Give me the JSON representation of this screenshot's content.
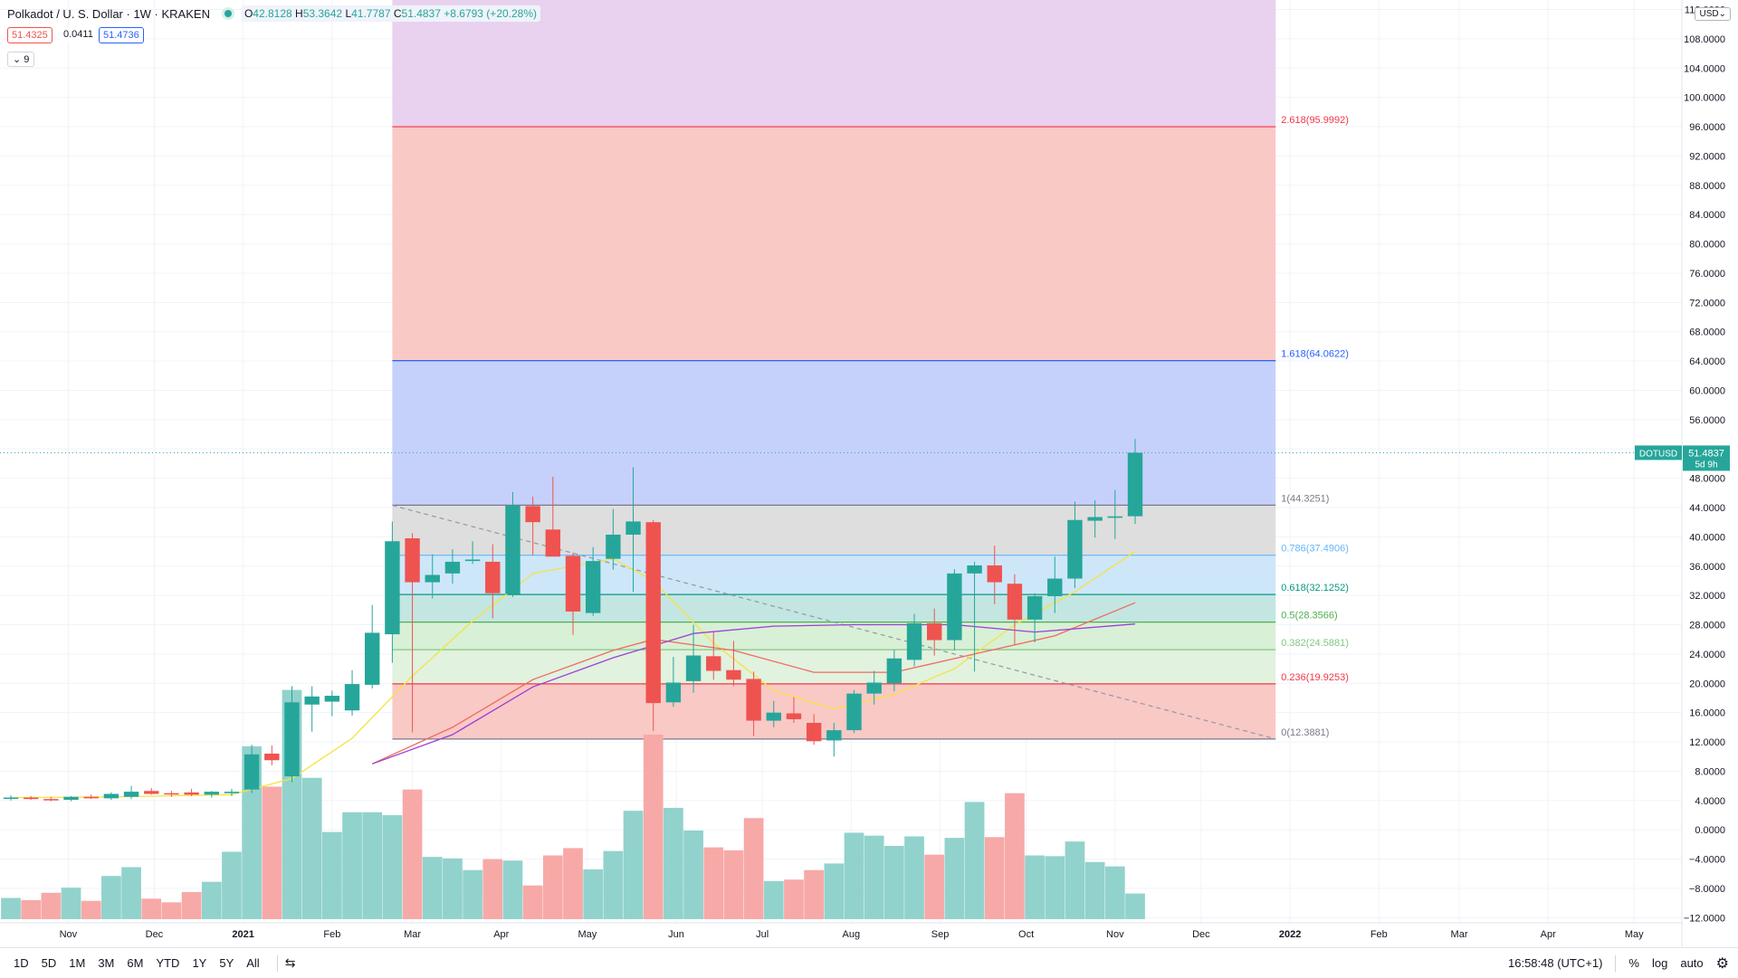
{
  "header": {
    "title": "Polkadot / U. S. Dollar · 1W · KRAKEN",
    "ohlc": {
      "o_label": "O",
      "o": "42.8128",
      "h_label": "H",
      "h": "53.3642",
      "l_label": "L",
      "l": "41.7787",
      "c_label": "C",
      "c": "51.4837",
      "chg": "+8.6793 (+20.28%)"
    },
    "bid": "51.4325",
    "spread": "0.0411",
    "ask": "51.4736",
    "collapse_label": "9",
    "currency": "USD"
  },
  "bottom": {
    "ranges": [
      "1D",
      "5D",
      "1M",
      "3M",
      "6M",
      "YTD",
      "1Y",
      "5Y",
      "All"
    ],
    "time": "16:58:48 (UTC+1)",
    "pct": "%",
    "log": "log",
    "auto": "auto"
  },
  "colors": {
    "up": "#26a69a",
    "down": "#ef5350",
    "ma_fast": "#f7e23f",
    "ma_mid": "#f06a5d",
    "ma_slow": "#9c3fd6"
  },
  "chart_data": {
    "type": "candlestick",
    "symbol_label": "DOTUSD",
    "last_price": "51.4837",
    "countdown": "5d 9h",
    "x_ticks": [
      {
        "label": "Nov",
        "date": "2020-11-01"
      },
      {
        "label": "Dec",
        "date": "2020-12-01"
      },
      {
        "label": "2021",
        "date": "2021-01-01"
      },
      {
        "label": "Feb",
        "date": "2021-02-01"
      },
      {
        "label": "Mar",
        "date": "2021-03-01"
      },
      {
        "label": "Apr",
        "date": "2021-04-01"
      },
      {
        "label": "May",
        "date": "2021-05-01"
      },
      {
        "label": "Jun",
        "date": "2021-06-01"
      },
      {
        "label": "Jul",
        "date": "2021-07-01"
      },
      {
        "label": "Aug",
        "date": "2021-08-01"
      },
      {
        "label": "Sep",
        "date": "2021-09-01"
      },
      {
        "label": "Oct",
        "date": "2021-10-01"
      },
      {
        "label": "Nov",
        "date": "2021-11-01"
      },
      {
        "label": "Dec",
        "date": "2021-12-01"
      },
      {
        "label": "2022",
        "date": "2022-01-01"
      },
      {
        "label": "Feb",
        "date": "2022-02-01"
      },
      {
        "label": "Mar",
        "date": "2022-03-01"
      },
      {
        "label": "Apr",
        "date": "2022-04-01"
      },
      {
        "label": "May",
        "date": "2022-05-01"
      }
    ],
    "y_ticks": [
      "112.0000",
      "108.0000",
      "104.0000",
      "100.0000",
      "96.0000",
      "92.0000",
      "88.0000",
      "84.0000",
      "80.0000",
      "76.0000",
      "72.0000",
      "68.0000",
      "64.0000",
      "60.0000",
      "56.0000",
      "52.0000",
      "48.0000",
      "44.0000",
      "40.0000",
      "36.0000",
      "32.0000",
      "28.0000",
      "24.0000",
      "20.0000",
      "16.0000",
      "12.0000",
      "8.0000",
      "4.0000",
      "0.0000",
      "−4.0000",
      "−8.0000",
      "−12.0000"
    ],
    "y_range": [
      -12.7,
      113.3
    ],
    "candles": [
      {
        "date": "2020-10-12",
        "o": 4.3,
        "h": 4.7,
        "l": 4.0,
        "c": 4.4
      },
      {
        "date": "2020-10-19",
        "o": 4.4,
        "h": 4.6,
        "l": 4.1,
        "c": 4.2
      },
      {
        "date": "2020-10-26",
        "o": 4.2,
        "h": 4.5,
        "l": 3.9,
        "c": 4.1
      },
      {
        "date": "2020-11-02",
        "o": 4.1,
        "h": 4.6,
        "l": 3.9,
        "c": 4.5
      },
      {
        "date": "2020-11-09",
        "o": 4.5,
        "h": 4.8,
        "l": 4.2,
        "c": 4.3
      },
      {
        "date": "2020-11-16",
        "o": 4.3,
        "h": 5.1,
        "l": 4.1,
        "c": 4.9
      },
      {
        "date": "2020-11-23",
        "o": 4.5,
        "h": 6.0,
        "l": 4.2,
        "c": 5.2
      },
      {
        "date": "2020-11-30",
        "o": 5.3,
        "h": 5.7,
        "l": 4.8,
        "c": 4.9
      },
      {
        "date": "2020-12-07",
        "o": 5.0,
        "h": 5.3,
        "l": 4.5,
        "c": 4.9
      },
      {
        "date": "2020-12-14",
        "o": 5.1,
        "h": 5.6,
        "l": 4.6,
        "c": 4.8
      },
      {
        "date": "2020-12-21",
        "o": 4.8,
        "h": 5.3,
        "l": 4.4,
        "c": 5.2
      },
      {
        "date": "2020-12-28",
        "o": 5.0,
        "h": 5.6,
        "l": 4.6,
        "c": 5.2
      },
      {
        "date": "2021-01-04",
        "o": 5.5,
        "h": 11.6,
        "l": 5.0,
        "c": 10.3
      },
      {
        "date": "2021-01-11",
        "o": 10.4,
        "h": 11.5,
        "l": 8.8,
        "c": 9.5
      },
      {
        "date": "2021-01-18",
        "o": 7.3,
        "h": 19.6,
        "l": 6.5,
        "c": 17.4
      },
      {
        "date": "2021-01-25",
        "o": 17.1,
        "h": 19.6,
        "l": 13.4,
        "c": 18.2
      },
      {
        "date": "2021-02-01",
        "o": 17.5,
        "h": 19.0,
        "l": 15.5,
        "c": 18.3
      },
      {
        "date": "2021-02-08",
        "o": 16.3,
        "h": 21.8,
        "l": 15.6,
        "c": 19.9
      },
      {
        "date": "2021-02-15",
        "o": 19.8,
        "h": 30.7,
        "l": 19.3,
        "c": 26.9
      },
      {
        "date": "2021-02-22",
        "o": 26.7,
        "h": 42.1,
        "l": 22.8,
        "c": 39.4
      },
      {
        "date": "2021-03-01",
        "o": 39.8,
        "h": 40.5,
        "l": 13.3,
        "c": 33.8
      },
      {
        "date": "2021-03-08",
        "o": 33.8,
        "h": 37.6,
        "l": 31.6,
        "c": 34.8
      },
      {
        "date": "2021-03-15",
        "o": 35.0,
        "h": 38.3,
        "l": 33.6,
        "c": 36.6
      },
      {
        "date": "2021-03-22",
        "o": 36.7,
        "h": 39.4,
        "l": 36.3,
        "c": 36.9
      },
      {
        "date": "2021-03-29",
        "o": 36.6,
        "h": 39.0,
        "l": 28.9,
        "c": 32.3
      },
      {
        "date": "2021-04-05",
        "o": 32.2,
        "h": 46.1,
        "l": 31.8,
        "c": 44.3
      },
      {
        "date": "2021-04-12",
        "o": 44.2,
        "h": 45.5,
        "l": 37.5,
        "c": 42.0
      },
      {
        "date": "2021-04-19",
        "o": 41.0,
        "h": 48.2,
        "l": 37.8,
        "c": 37.3
      },
      {
        "date": "2021-04-26",
        "o": 37.4,
        "h": 37.8,
        "l": 26.6,
        "c": 29.8
      },
      {
        "date": "2021-05-03",
        "o": 29.6,
        "h": 38.6,
        "l": 29.2,
        "c": 36.7
      },
      {
        "date": "2021-05-10",
        "o": 37.0,
        "h": 43.8,
        "l": 35.5,
        "c": 40.3
      },
      {
        "date": "2021-05-17",
        "o": 40.3,
        "h": 49.5,
        "l": 32.5,
        "c": 42.1
      },
      {
        "date": "2021-05-24",
        "o": 42.0,
        "h": 42.3,
        "l": 13.5,
        "c": 17.3
      },
      {
        "date": "2021-05-31",
        "o": 17.4,
        "h": 23.6,
        "l": 16.8,
        "c": 20.1
      },
      {
        "date": "2021-06-07",
        "o": 20.3,
        "h": 28.0,
        "l": 18.7,
        "c": 23.8
      },
      {
        "date": "2021-06-14",
        "o": 23.7,
        "h": 27.0,
        "l": 20.5,
        "c": 21.7
      },
      {
        "date": "2021-06-21",
        "o": 21.8,
        "h": 25.8,
        "l": 19.6,
        "c": 20.5
      },
      {
        "date": "2021-06-28",
        "o": 20.6,
        "h": 21.6,
        "l": 12.8,
        "c": 14.9
      },
      {
        "date": "2021-07-05",
        "o": 14.9,
        "h": 17.6,
        "l": 14.0,
        "c": 16.0
      },
      {
        "date": "2021-07-12",
        "o": 15.9,
        "h": 18.1,
        "l": 14.6,
        "c": 15.1
      },
      {
        "date": "2021-07-19",
        "o": 14.6,
        "h": 15.8,
        "l": 11.6,
        "c": 12.1
      },
      {
        "date": "2021-07-26",
        "o": 12.2,
        "h": 14.6,
        "l": 10.0,
        "c": 13.6
      },
      {
        "date": "2021-08-02",
        "o": 13.6,
        "h": 19.1,
        "l": 13.2,
        "c": 18.6
      },
      {
        "date": "2021-08-09",
        "o": 18.6,
        "h": 21.7,
        "l": 17.1,
        "c": 20.1
      },
      {
        "date": "2021-08-16",
        "o": 20.0,
        "h": 24.6,
        "l": 18.9,
        "c": 23.4
      },
      {
        "date": "2021-08-23",
        "o": 23.2,
        "h": 29.5,
        "l": 22.3,
        "c": 28.2
      },
      {
        "date": "2021-08-30",
        "o": 28.2,
        "h": 30.2,
        "l": 23.8,
        "c": 25.9
      },
      {
        "date": "2021-09-06",
        "o": 25.9,
        "h": 35.6,
        "l": 24.5,
        "c": 35.0
      },
      {
        "date": "2021-09-13",
        "o": 35.0,
        "h": 36.6,
        "l": 21.6,
        "c": 36.1
      },
      {
        "date": "2021-09-20",
        "o": 36.1,
        "h": 38.8,
        "l": 30.8,
        "c": 33.8
      },
      {
        "date": "2021-09-27",
        "o": 33.6,
        "h": 34.9,
        "l": 25.3,
        "c": 28.7
      },
      {
        "date": "2021-10-04",
        "o": 28.7,
        "h": 32.3,
        "l": 25.6,
        "c": 31.9
      },
      {
        "date": "2021-10-11",
        "o": 31.9,
        "h": 37.3,
        "l": 29.6,
        "c": 34.3
      },
      {
        "date": "2021-10-18",
        "o": 34.3,
        "h": 44.8,
        "l": 33.0,
        "c": 42.3
      },
      {
        "date": "2021-10-25",
        "o": 42.2,
        "h": 45.0,
        "l": 39.9,
        "c": 42.7
      },
      {
        "date": "2021-11-01",
        "o": 42.6,
        "h": 46.4,
        "l": 39.7,
        "c": 42.8
      },
      {
        "date": "2021-11-08",
        "o": 42.8128,
        "h": 53.3642,
        "l": 41.7787,
        "c": 51.4837
      }
    ],
    "volume_level_4": [
      {
        "date": "2020-10-12",
        "v": -9.3
      },
      {
        "date": "2020-10-19",
        "v": -9.6
      },
      {
        "date": "2020-10-26",
        "v": -8.6
      },
      {
        "date": "2020-11-02",
        "v": -7.9
      },
      {
        "date": "2020-11-09",
        "v": -9.7
      },
      {
        "date": "2020-11-16",
        "v": -6.3
      },
      {
        "date": "2020-11-23",
        "v": -5.1
      },
      {
        "date": "2020-11-30",
        "v": -9.4
      },
      {
        "date": "2020-12-07",
        "v": -9.9
      },
      {
        "date": "2020-12-14",
        "v": -8.5
      },
      {
        "date": "2020-12-21",
        "v": -7.1
      },
      {
        "date": "2020-12-28",
        "v": -3.0
      },
      {
        "date": "2021-01-04",
        "v": 11.4
      },
      {
        "date": "2021-01-11",
        "v": 5.9
      },
      {
        "date": "2021-01-18",
        "v": 19.1
      },
      {
        "date": "2021-01-25",
        "v": 7.1
      },
      {
        "date": "2021-02-01",
        "v": -0.3
      },
      {
        "date": "2021-02-08",
        "v": 2.4
      },
      {
        "date": "2021-02-15",
        "v": 2.4
      },
      {
        "date": "2021-02-22",
        "v": 2.0
      },
      {
        "date": "2021-03-01",
        "v": 5.5
      },
      {
        "date": "2021-03-08",
        "v": -3.7
      },
      {
        "date": "2021-03-15",
        "v": -3.9
      },
      {
        "date": "2021-03-22",
        "v": -5.5
      },
      {
        "date": "2021-03-29",
        "v": -4.0
      },
      {
        "date": "2021-04-05",
        "v": -4.2
      },
      {
        "date": "2021-04-12",
        "v": -7.6
      },
      {
        "date": "2021-04-19",
        "v": -3.5
      },
      {
        "date": "2021-04-26",
        "v": -2.5
      },
      {
        "date": "2021-05-03",
        "v": -5.4
      },
      {
        "date": "2021-05-10",
        "v": -2.9
      },
      {
        "date": "2021-05-17",
        "v": 2.6
      },
      {
        "date": "2021-05-24",
        "v": 13.0
      },
      {
        "date": "2021-05-31",
        "v": 3.0
      },
      {
        "date": "2021-06-07",
        "v": -0.1
      },
      {
        "date": "2021-06-14",
        "v": -2.4
      },
      {
        "date": "2021-06-21",
        "v": -2.8
      },
      {
        "date": "2021-06-28",
        "v": 1.6
      },
      {
        "date": "2021-07-05",
        "v": -7.0
      },
      {
        "date": "2021-07-12",
        "v": -6.8
      },
      {
        "date": "2021-07-19",
        "v": -5.5
      },
      {
        "date": "2021-07-26",
        "v": -4.6
      },
      {
        "date": "2021-08-02",
        "v": -0.4
      },
      {
        "date": "2021-08-09",
        "v": -0.8
      },
      {
        "date": "2021-08-16",
        "v": -2.2
      },
      {
        "date": "2021-08-23",
        "v": -0.9
      },
      {
        "date": "2021-08-30",
        "v": -3.4
      },
      {
        "date": "2021-09-06",
        "v": -1.1
      },
      {
        "date": "2021-09-13",
        "v": 3.8
      },
      {
        "date": "2021-09-20",
        "v": -1.0
      },
      {
        "date": "2021-09-27",
        "v": 5.0
      },
      {
        "date": "2021-10-04",
        "v": -3.5
      },
      {
        "date": "2021-10-11",
        "v": -3.6
      },
      {
        "date": "2021-10-18",
        "v": -1.6
      },
      {
        "date": "2021-10-25",
        "v": -4.4
      },
      {
        "date": "2021-11-01",
        "v": -5.0
      },
      {
        "date": "2021-11-08",
        "v": -8.7
      }
    ],
    "ma_fast": [
      {
        "date": "2020-10-12",
        "v": 4.4
      },
      {
        "date": "2020-11-16",
        "v": 4.5
      },
      {
        "date": "2020-12-28",
        "v": 4.8
      },
      {
        "date": "2021-01-18",
        "v": 7.0
      },
      {
        "date": "2021-02-08",
        "v": 12.5
      },
      {
        "date": "2021-03-01",
        "v": 21.0
      },
      {
        "date": "2021-03-22",
        "v": 28.5
      },
      {
        "date": "2021-04-12",
        "v": 35.0
      },
      {
        "date": "2021-05-10",
        "v": 37.0
      },
      {
        "date": "2021-05-24",
        "v": 34.0
      },
      {
        "date": "2021-06-14",
        "v": 25.5
      },
      {
        "date": "2021-07-05",
        "v": 19.0
      },
      {
        "date": "2021-07-26",
        "v": 16.5
      },
      {
        "date": "2021-08-16",
        "v": 18.5
      },
      {
        "date": "2021-09-06",
        "v": 22.0
      },
      {
        "date": "2021-09-27",
        "v": 28.0
      },
      {
        "date": "2021-10-18",
        "v": 32.5
      },
      {
        "date": "2021-11-08",
        "v": 38.0
      }
    ],
    "ma_mid": [
      {
        "date": "2021-02-15",
        "v": 9.0
      },
      {
        "date": "2021-03-15",
        "v": 14.0
      },
      {
        "date": "2021-04-12",
        "v": 20.5
      },
      {
        "date": "2021-05-10",
        "v": 24.5
      },
      {
        "date": "2021-05-24",
        "v": 26.0
      },
      {
        "date": "2021-06-21",
        "v": 24.5
      },
      {
        "date": "2021-07-19",
        "v": 21.5
      },
      {
        "date": "2021-08-16",
        "v": 21.5
      },
      {
        "date": "2021-09-13",
        "v": 24.0
      },
      {
        "date": "2021-10-11",
        "v": 26.5
      },
      {
        "date": "2021-11-08",
        "v": 31.0
      }
    ],
    "ma_slow": [
      {
        "date": "2021-02-15",
        "v": 9.0
      },
      {
        "date": "2021-03-15",
        "v": 13.0
      },
      {
        "date": "2021-04-12",
        "v": 19.5
      },
      {
        "date": "2021-05-10",
        "v": 23.5
      },
      {
        "date": "2021-06-07",
        "v": 26.8
      },
      {
        "date": "2021-07-05",
        "v": 27.8
      },
      {
        "date": "2021-08-02",
        "v": 28.0
      },
      {
        "date": "2021-09-06",
        "v": 28.0
      },
      {
        "date": "2021-10-04",
        "v": 27.0
      },
      {
        "date": "2021-11-08",
        "v": 28.1
      }
    ],
    "fib": {
      "start_date": "2021-02-22",
      "end_date": "2021-12-27",
      "levels": [
        {
          "label": "2.618(95.9992)",
          "value": 95.9992,
          "color": "#f23645",
          "fill": "#f9c9c6"
        },
        {
          "label": "1.618(64.0622)",
          "value": 64.0622,
          "color": "#2962ff",
          "fill": "#f9c9c6"
        },
        {
          "label": "1(44.3251)",
          "value": 44.3251,
          "color": "#787b86",
          "fill": "#c6d1fb"
        },
        {
          "label": "0.786(37.4906)",
          "value": 37.4906,
          "color": "#64b5f6",
          "fill": "#dedede"
        },
        {
          "label": "0.618(32.1252)",
          "value": 32.1252,
          "color": "#089981",
          "fill": "#cde7f9"
        },
        {
          "label": "0.5(28.3566)",
          "value": 28.3566,
          "color": "#4caf50",
          "fill": "#c3e6e2"
        },
        {
          "label": "0.382(24.5881)",
          "value": 24.5881,
          "color": "#81c784",
          "fill": "#d8f0d6"
        },
        {
          "label": "0.236(19.9253)",
          "value": 19.9253,
          "color": "#f23645",
          "fill": "#e1f2df"
        },
        {
          "label": "0(12.3881)",
          "value": 12.3881,
          "color": "#787b86",
          "fill": "#f9c9c6"
        }
      ],
      "top_fill": "#e8d2ef"
    },
    "trendline": {
      "start": {
        "date": "2021-02-22",
        "v": 44.3
      },
      "end": {
        "date": "2021-12-27",
        "v": 12.4
      }
    }
  }
}
